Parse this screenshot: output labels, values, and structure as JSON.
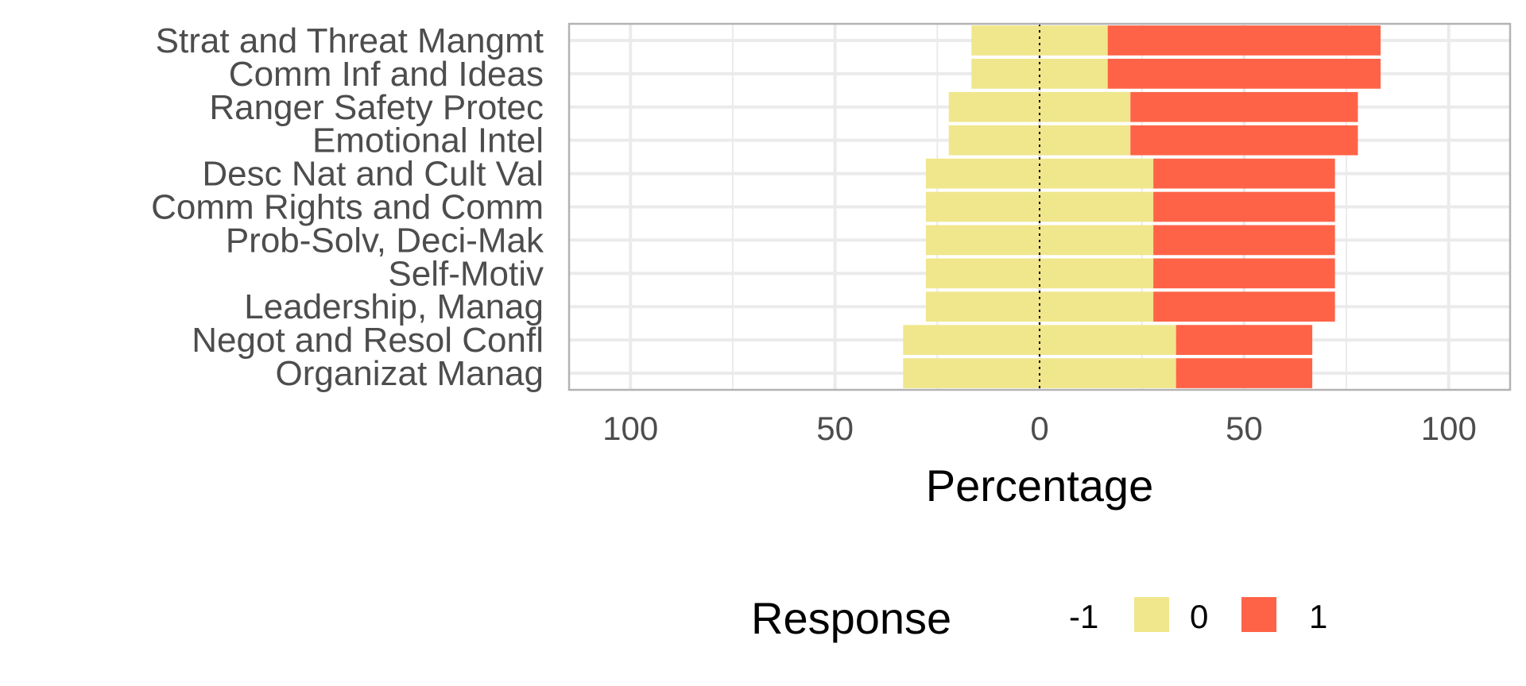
{
  "chart_data": {
    "type": "bar",
    "orientation": "horizontal",
    "stacked": "diverging",
    "categories": [
      "Strat and Threat Mangmt",
      "Comm Inf and Ideas",
      "Ranger Safety Protec",
      "Emotional Intel",
      "Desc Nat and Cult Val",
      "Comm Rights and Comm",
      "Prob-Solv, Deci-Mak",
      "Self-Motiv",
      "Leadership, Manag",
      "Negot and Resol Confl",
      "Organizat Manag"
    ],
    "series": [
      {
        "name": "-1",
        "color": "#d73027",
        "values": [
          0,
          0,
          0,
          0,
          0,
          0,
          0,
          0,
          0,
          0,
          0
        ]
      },
      {
        "name": "0",
        "color": "#f0e68c",
        "values": [
          33.3,
          33.3,
          44.4,
          44.4,
          55.6,
          55.6,
          55.6,
          55.6,
          55.6,
          66.7,
          66.7
        ]
      },
      {
        "name": "1",
        "color": "#ff6347",
        "values": [
          66.7,
          66.7,
          55.6,
          55.6,
          44.4,
          44.4,
          44.4,
          44.4,
          44.4,
          33.3,
          33.3
        ]
      }
    ],
    "xlabel": "Percentage",
    "ylabel": "",
    "xlim": [
      -115,
      115
    ],
    "xticks": [
      -100,
      -50,
      0,
      50,
      100
    ],
    "xtick_labels": [
      "100",
      "50",
      "0",
      "50",
      "100"
    ],
    "grid": true,
    "zero_line": "dotted",
    "legend": {
      "title": "Response",
      "position": "bottom",
      "entries": [
        "-1",
        "0",
        "1"
      ]
    }
  }
}
